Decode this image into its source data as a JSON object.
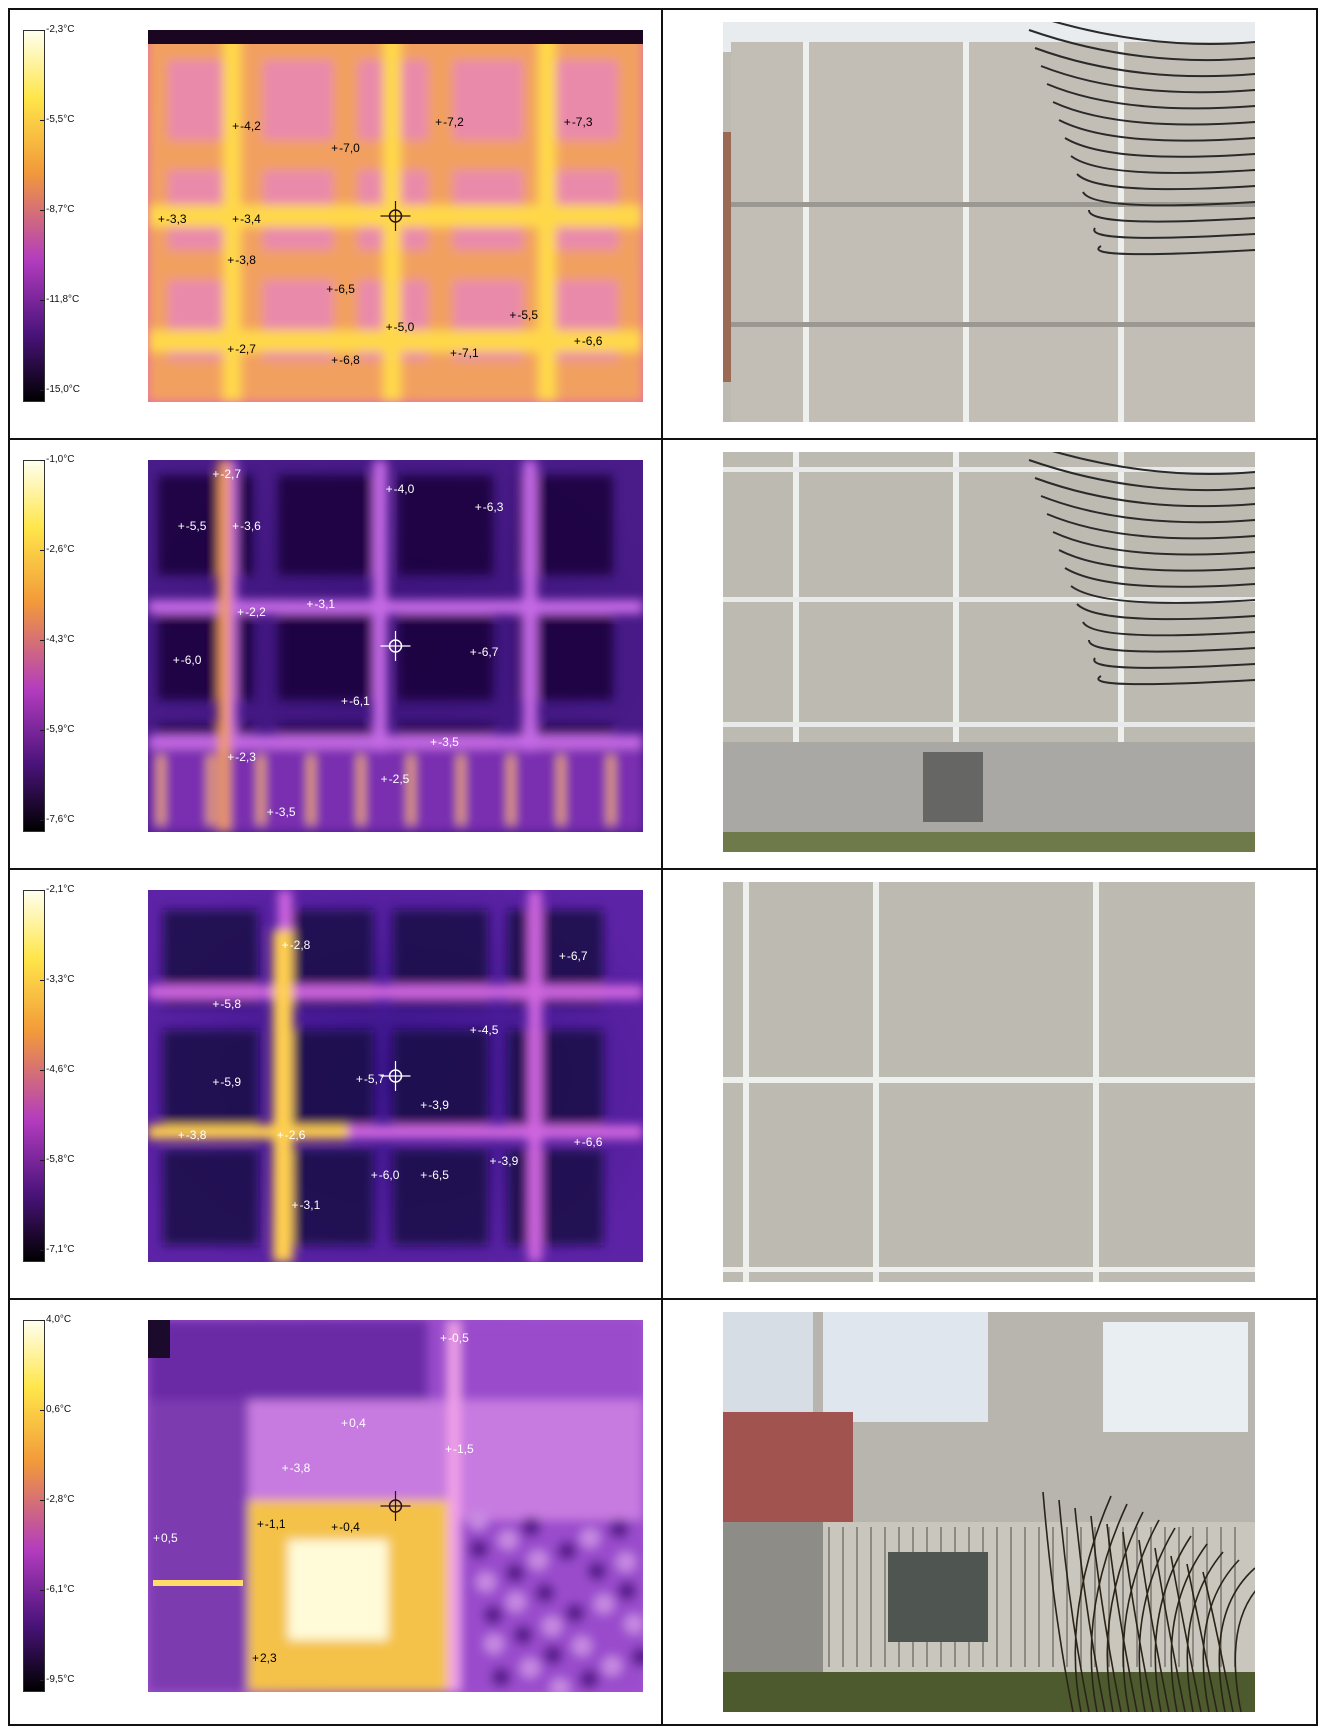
{
  "panels": [
    {
      "scale": {
        "ticks": [
          "-2,3°C",
          "-5,5°C",
          "-8,7°C",
          "-11,8°C",
          "-15,0°C"
        ]
      },
      "points": [
        {
          "t": "-4,2",
          "x": 0.17,
          "y": 0.26,
          "c": "#000"
        },
        {
          "t": "-7,0",
          "x": 0.37,
          "y": 0.32,
          "c": "#000"
        },
        {
          "t": "-7,2",
          "x": 0.58,
          "y": 0.25,
          "c": "#000"
        },
        {
          "t": "-7,3",
          "x": 0.84,
          "y": 0.25,
          "c": "#000"
        },
        {
          "t": "-3,3",
          "x": 0.02,
          "y": 0.51,
          "c": "#000"
        },
        {
          "t": "-3,4",
          "x": 0.17,
          "y": 0.51,
          "c": "#000"
        },
        {
          "t": "-3,8",
          "x": 0.16,
          "y": 0.62,
          "c": "#000"
        },
        {
          "t": "-6,5",
          "x": 0.36,
          "y": 0.7,
          "c": "#000"
        },
        {
          "t": "-5,5",
          "x": 0.73,
          "y": 0.77,
          "c": "#000"
        },
        {
          "t": "-5,0",
          "x": 0.48,
          "y": 0.8,
          "c": "#000"
        },
        {
          "t": "-2,7",
          "x": 0.16,
          "y": 0.86,
          "c": "#000"
        },
        {
          "t": "-6,8",
          "x": 0.37,
          "y": 0.89,
          "c": "#000"
        },
        {
          "t": "-7,1",
          "x": 0.61,
          "y": 0.87,
          "c": "#000"
        },
        {
          "t": "-6,6",
          "x": 0.86,
          "y": 0.84,
          "c": "#000"
        }
      ]
    },
    {
      "scale": {
        "ticks": [
          "-1,0°C",
          "-2,6°C",
          "-4,3°C",
          "-5,9°C",
          "-7,6°C"
        ]
      },
      "points": [
        {
          "t": "-2,7",
          "x": 0.13,
          "y": 0.04,
          "c": "#fff"
        },
        {
          "t": "-4,0",
          "x": 0.48,
          "y": 0.08,
          "c": "#fff"
        },
        {
          "t": "-6,3",
          "x": 0.66,
          "y": 0.13,
          "c": "#fff"
        },
        {
          "t": "-5,5",
          "x": 0.06,
          "y": 0.18,
          "c": "#fff"
        },
        {
          "t": "-3,6",
          "x": 0.17,
          "y": 0.18,
          "c": "#fff"
        },
        {
          "t": "-2,2",
          "x": 0.18,
          "y": 0.41,
          "c": "#fff"
        },
        {
          "t": "-3,1",
          "x": 0.32,
          "y": 0.39,
          "c": "#fff"
        },
        {
          "t": "-6,0",
          "x": 0.05,
          "y": 0.54,
          "c": "#fff"
        },
        {
          "t": "-6,7",
          "x": 0.65,
          "y": 0.52,
          "c": "#fff"
        },
        {
          "t": "-6,1",
          "x": 0.39,
          "y": 0.65,
          "c": "#fff"
        },
        {
          "t": "-3,5",
          "x": 0.57,
          "y": 0.76,
          "c": "#fff"
        },
        {
          "t": "-2,3",
          "x": 0.16,
          "y": 0.8,
          "c": "#fff"
        },
        {
          "t": "-2,5",
          "x": 0.47,
          "y": 0.86,
          "c": "#fff"
        },
        {
          "t": "-3,5",
          "x": 0.24,
          "y": 0.95,
          "c": "#fff"
        }
      ]
    },
    {
      "scale": {
        "ticks": [
          "-2,1°C",
          "-3,3°C",
          "-4,6°C",
          "-5,8°C",
          "-7,1°C"
        ]
      },
      "points": [
        {
          "t": "-2,8",
          "x": 0.27,
          "y": 0.15,
          "c": "#fff"
        },
        {
          "t": "-6,7",
          "x": 0.83,
          "y": 0.18,
          "c": "#fff"
        },
        {
          "t": "-5,8",
          "x": 0.13,
          "y": 0.31,
          "c": "#fff"
        },
        {
          "t": "-4,5",
          "x": 0.65,
          "y": 0.38,
          "c": "#fff"
        },
        {
          "t": "-5,9",
          "x": 0.13,
          "y": 0.52,
          "c": "#fff"
        },
        {
          "t": "-5,7",
          "x": 0.42,
          "y": 0.51,
          "c": "#fff"
        },
        {
          "t": "-3,9",
          "x": 0.55,
          "y": 0.58,
          "c": "#fff"
        },
        {
          "t": "-3,8",
          "x": 0.06,
          "y": 0.66,
          "c": "#fff"
        },
        {
          "t": "-2,6",
          "x": 0.26,
          "y": 0.66,
          "c": "#fff"
        },
        {
          "t": "-6,6",
          "x": 0.86,
          "y": 0.68,
          "c": "#fff"
        },
        {
          "t": "-3,9",
          "x": 0.69,
          "y": 0.73,
          "c": "#fff"
        },
        {
          "t": "-6,0",
          "x": 0.45,
          "y": 0.77,
          "c": "#fff"
        },
        {
          "t": "-6,5",
          "x": 0.55,
          "y": 0.77,
          "c": "#fff"
        },
        {
          "t": "-3,1",
          "x": 0.29,
          "y": 0.85,
          "c": "#fff"
        }
      ]
    },
    {
      "scale": {
        "ticks": [
          "4,0°C",
          "0,6°C",
          "-2,8°C",
          "-6,1°C",
          "-9,5°C"
        ]
      },
      "points": [
        {
          "t": "-0,5",
          "x": 0.59,
          "y": 0.05,
          "c": "#fff"
        },
        {
          "t": "0,4",
          "x": 0.39,
          "y": 0.28,
          "c": "#fff"
        },
        {
          "t": "-1,5",
          "x": 0.6,
          "y": 0.35,
          "c": "#fff"
        },
        {
          "t": "-3,8",
          "x": 0.27,
          "y": 0.4,
          "c": "#fff"
        },
        {
          "t": "-1,1",
          "x": 0.22,
          "y": 0.55,
          "c": "#000"
        },
        {
          "t": "-0,4",
          "x": 0.37,
          "y": 0.56,
          "c": "#000"
        },
        {
          "t": "0,5",
          "x": 0.01,
          "y": 0.59,
          "c": "#fff"
        },
        {
          "t": "2,3",
          "x": 0.21,
          "y": 0.91,
          "c": "#000"
        }
      ]
    }
  ]
}
